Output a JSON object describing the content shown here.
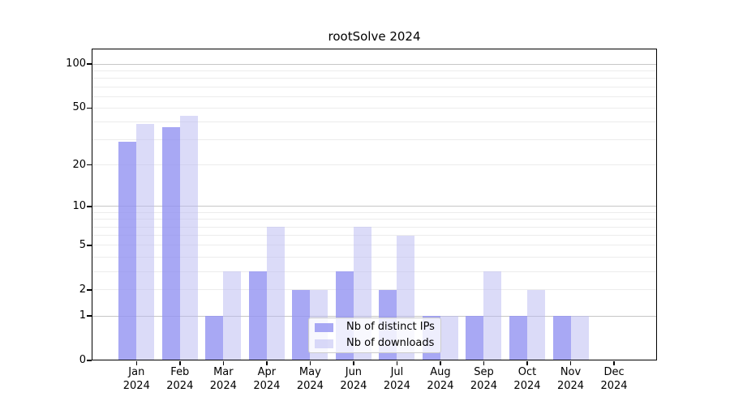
{
  "figure": {
    "title": "rootSolve 2024",
    "background_color": "#ffffff",
    "axis_color": "#000000",
    "grid_minor_color": "#ececec",
    "grid_major_color": "#c6c6c6"
  },
  "chart_data": {
    "type": "bar",
    "title": "rootSolve 2024",
    "xlabel": "",
    "ylabel": "",
    "x_year": "2024",
    "categories": [
      "Jan",
      "Feb",
      "Mar",
      "Apr",
      "May",
      "Jun",
      "Jul",
      "Aug",
      "Sep",
      "Oct",
      "Nov",
      "Dec"
    ],
    "series": [
      {
        "name": "Nb of distinct IPs",
        "color": "#a8a8f1",
        "fill": "rgba(146,146,241,0.8)",
        "values": [
          29,
          37,
          1,
          3,
          2,
          3,
          2,
          1,
          1,
          1,
          1,
          0
        ]
      },
      {
        "name": "Nb of downloads",
        "color": "#dbdbf8",
        "fill": "rgba(183,183,241,0.5)",
        "values": [
          39,
          44,
          3,
          7,
          2,
          7,
          6,
          1,
          3,
          2,
          1,
          0
        ]
      }
    ],
    "y_scale": "log10(value+1)",
    "y_ticks": [
      0,
      1,
      2,
      5,
      10,
      20,
      50,
      100
    ],
    "y_grid_minor": [
      2,
      3,
      4,
      5,
      6,
      7,
      8,
      9,
      20,
      30,
      40,
      50,
      60,
      70,
      80,
      90
    ],
    "y_grid_major": [
      1,
      10,
      100
    ],
    "ylim": [
      0,
      128
    ],
    "grid": true,
    "legend_position": "bottom-center"
  }
}
